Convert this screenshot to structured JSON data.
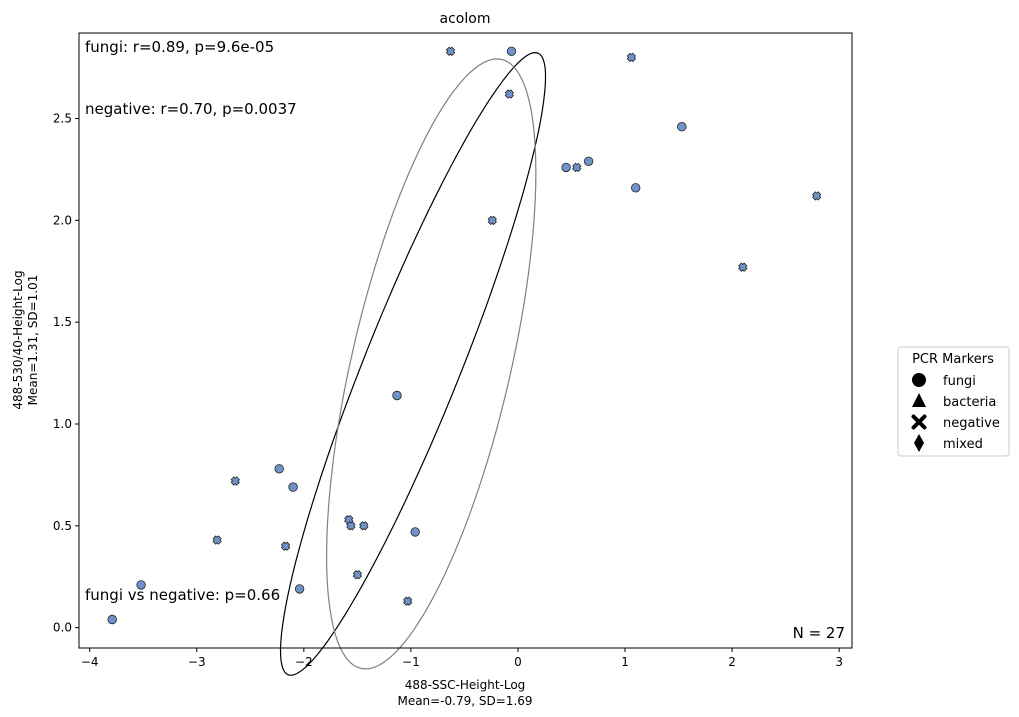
{
  "chart_data": {
    "type": "scatter",
    "title": "acolom",
    "xlabel": "488-SSC-Height-Log",
    "xlabel_sub": "Mean=-0.79, SD=1.69",
    "ylabel": "488-530/40-Height-Log",
    "ylabel_sub": "Mean=1.31, SD=1.01",
    "xlim": [
      -4.1,
      3.12
    ],
    "ylim": [
      -0.1,
      2.92
    ],
    "xticks": [
      -4,
      -3,
      -2,
      -1,
      0,
      1,
      2,
      3
    ],
    "yticks": [
      0.0,
      0.5,
      1.0,
      1.5,
      2.0,
      2.5
    ],
    "xtick_labels": [
      "−4",
      "−3",
      "−2",
      "−1",
      "0",
      "1",
      "2",
      "3"
    ],
    "ytick_labels": [
      "0.0",
      "0.5",
      "1.0",
      "1.5",
      "2.0",
      "2.5"
    ],
    "marker_color": "#6f93c9",
    "annotations": {
      "fungi_stats": "fungi: r=0.89, p=9.6e-05",
      "negative_stats": "negative: r=0.70, p=0.0037",
      "comparison": "fungi vs negative: p=0.66",
      "n": "N = 27"
    },
    "legend": {
      "title": "PCR Markers",
      "placement": "right",
      "entries": [
        {
          "label": "fungi",
          "marker": "circle"
        },
        {
          "label": "bacteria",
          "marker": "triangle"
        },
        {
          "label": "negative",
          "marker": "x"
        },
        {
          "label": "mixed",
          "marker": "diamond"
        }
      ]
    },
    "series": [
      {
        "name": "fungi",
        "marker": "circle",
        "points": [
          [
            -3.79,
            0.04
          ],
          [
            -3.52,
            0.21
          ],
          [
            -2.23,
            0.78
          ],
          [
            -2.1,
            0.69
          ],
          [
            -2.04,
            0.19
          ],
          [
            -1.13,
            1.14
          ],
          [
            -0.96,
            0.47
          ],
          [
            -0.06,
            2.83
          ],
          [
            0.45,
            2.26
          ],
          [
            0.66,
            2.29
          ],
          [
            1.1,
            2.16
          ],
          [
            1.53,
            2.46
          ]
        ]
      },
      {
        "name": "negative",
        "marker": "x",
        "points": [
          [
            -2.64,
            0.72
          ],
          [
            -2.81,
            0.43
          ],
          [
            -2.17,
            0.4
          ],
          [
            -1.58,
            0.53
          ],
          [
            -1.56,
            0.5
          ],
          [
            -1.44,
            0.5
          ],
          [
            -1.5,
            0.26
          ],
          [
            -1.03,
            0.13
          ],
          [
            -0.63,
            2.83
          ],
          [
            -0.08,
            2.62
          ],
          [
            -0.24,
            2.0
          ],
          [
            0.55,
            2.26
          ],
          [
            1.06,
            2.8
          ],
          [
            2.1,
            1.77
          ],
          [
            2.79,
            2.12
          ]
        ]
      }
    ],
    "ellipses": [
      {
        "series": "fungi",
        "color": "#000000",
        "cx": -0.98,
        "cy": 1.295,
        "angle_deg": 51.5,
        "semi_major": 1.93,
        "semi_minor": 0.38
      },
      {
        "series": "negative",
        "color": "#808080",
        "cx": -0.81,
        "cy": 1.295,
        "angle_deg": 62.5,
        "semi_major": 1.65,
        "semi_minor": 0.69
      }
    ]
  }
}
